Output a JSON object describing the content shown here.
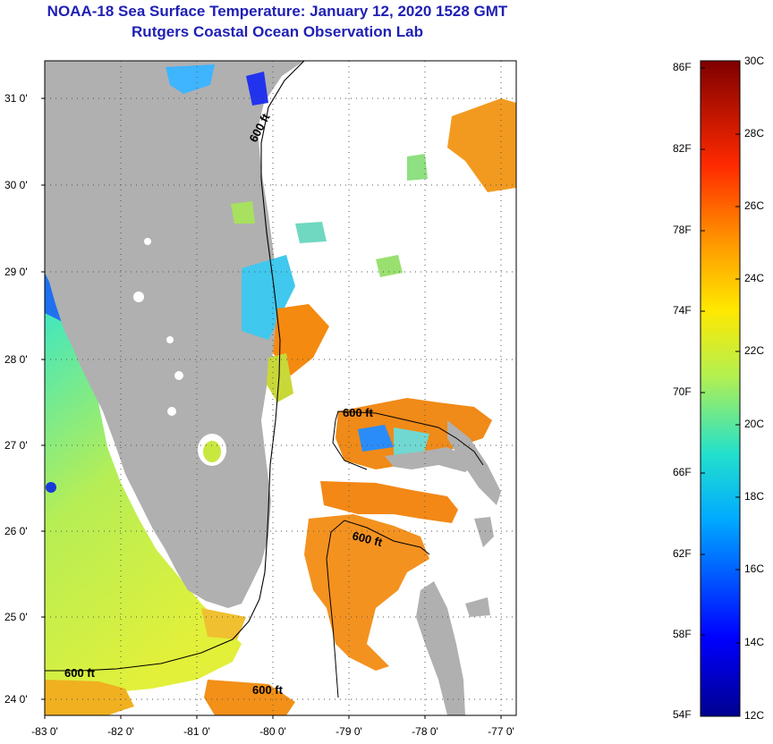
{
  "header": {
    "title": "NOAA-18 Sea Surface Temperature:  January 12, 2020 1528 GMT",
    "subtitle": "Rutgers Coastal Ocean Observation Lab"
  },
  "axes": {
    "lat_labels": [
      "31 0'",
      "30 0'",
      "29 0'",
      "28 0'",
      "27 0'",
      "26 0'",
      "25 0'",
      "24 0'"
    ],
    "lon_labels": [
      "-83 0'",
      "-82 0'",
      "-81 0'",
      "-80 0'",
      "-79 0'",
      "-78 0'",
      "-77 0'"
    ]
  },
  "contours": {
    "label_1": "600 ft",
    "label_2": "600 ft",
    "label_3": "600 ft",
    "label_4": "600 ft",
    "label_5": "600 ft"
  },
  "colorbar": {
    "fahrenheit": [
      "86F",
      "82F",
      "78F",
      "74F",
      "70F",
      "66F",
      "62F",
      "58F",
      "54F"
    ],
    "celsius": [
      "30C",
      "28C",
      "26C",
      "24C",
      "22C",
      "20C",
      "18C",
      "16C",
      "14C",
      "12C"
    ]
  },
  "colors": {
    "title": "#1f1fb4",
    "land": "#b0b0b0",
    "no_data": "#ffffff"
  }
}
